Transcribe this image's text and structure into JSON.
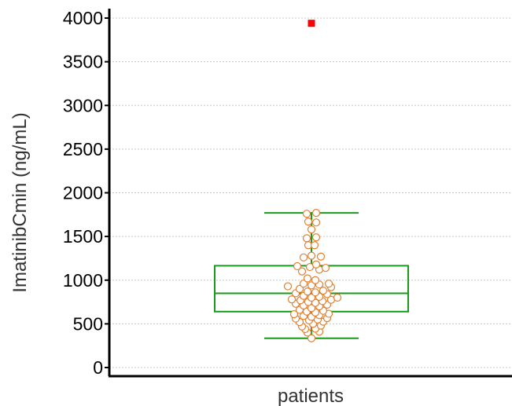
{
  "chart_data": {
    "type": "box",
    "title": "",
    "ylabel": "ImatinibCmin (ng/mL)",
    "xlabel": "",
    "categories": [
      "patients"
    ],
    "ylim": [
      -100,
      4100
    ],
    "yticks": [
      0,
      500,
      1000,
      1500,
      2000,
      2500,
      3000,
      3500,
      4000
    ],
    "grid": "horizontal-dotted",
    "box": {
      "whisker_low": 335,
      "q1": 640,
      "median": 850,
      "q3": 1165,
      "whisker_high": 1770
    },
    "outliers": [
      3940
    ],
    "points": [
      [
        0.0,
        335
      ],
      [
        -0.05,
        400
      ],
      [
        0.1,
        410
      ],
      [
        -0.08,
        440
      ],
      [
        0.05,
        445
      ],
      [
        -0.12,
        470
      ],
      [
        0.12,
        480
      ],
      [
        0.02,
        500
      ],
      [
        -0.15,
        520
      ],
      [
        0.15,
        525
      ],
      [
        -0.03,
        540
      ],
      [
        0.08,
        550
      ],
      [
        -0.2,
        560
      ],
      [
        0.2,
        565
      ],
      [
        0.0,
        580
      ],
      [
        -0.1,
        590
      ],
      [
        0.1,
        600
      ],
      [
        -0.22,
        610
      ],
      [
        0.22,
        615
      ],
      [
        0.05,
        630
      ],
      [
        -0.06,
        640
      ],
      [
        0.15,
        650
      ],
      [
        -0.15,
        660
      ],
      [
        0.0,
        680
      ],
      [
        0.1,
        700
      ],
      [
        -0.1,
        710
      ],
      [
        0.2,
        720
      ],
      [
        -0.2,
        730
      ],
      [
        0.05,
        740
      ],
      [
        -0.04,
        750
      ],
      [
        0.14,
        760
      ],
      [
        -0.14,
        770
      ],
      [
        0.25,
        775
      ],
      [
        -0.25,
        780
      ],
      [
        0.33,
        800
      ],
      [
        0.0,
        800
      ],
      [
        0.1,
        810
      ],
      [
        -0.1,
        820
      ],
      [
        0.2,
        840
      ],
      [
        -0.2,
        850
      ],
      [
        0.05,
        860
      ],
      [
        -0.05,
        870
      ],
      [
        0.15,
        880
      ],
      [
        -0.15,
        900
      ],
      [
        0.25,
        920
      ],
      [
        -0.3,
        930
      ],
      [
        0.0,
        940
      ],
      [
        0.1,
        950
      ],
      [
        -0.1,
        960
      ],
      [
        0.22,
        960
      ],
      [
        0.05,
        1000
      ],
      [
        -0.05,
        1020
      ],
      [
        -0.12,
        1100
      ],
      [
        0.1,
        1120
      ],
      [
        0.18,
        1140
      ],
      [
        -0.02,
        1150
      ],
      [
        -0.18,
        1160
      ],
      [
        0.06,
        1180
      ],
      [
        -0.1,
        1260
      ],
      [
        0.12,
        1270
      ],
      [
        0.0,
        1280
      ],
      [
        -0.04,
        1400
      ],
      [
        0.04,
        1400
      ],
      [
        -0.06,
        1480
      ],
      [
        0.06,
        1490
      ],
      [
        0.0,
        1580
      ],
      [
        0.06,
        1660
      ],
      [
        -0.04,
        1670
      ],
      [
        -0.06,
        1760
      ],
      [
        0.06,
        1770
      ]
    ],
    "colors": {
      "box": "#1a9a1a",
      "points_stroke": "#e08030",
      "outlier": "#ff0000",
      "grid": "#c8c8c8",
      "axis": "#000000"
    }
  }
}
